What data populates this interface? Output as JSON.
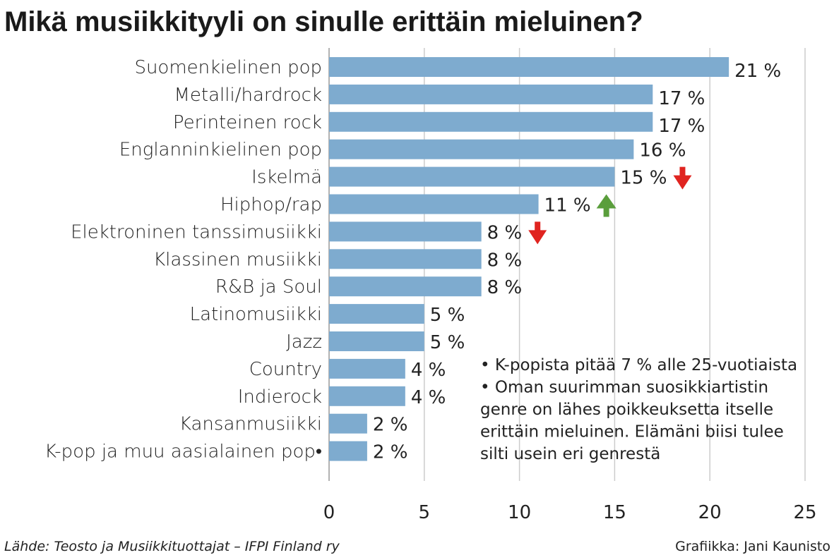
{
  "chart_data": {
    "type": "bar",
    "orientation": "horizontal",
    "title": "Mikä musiikkityyli on sinulle erittäin mieluinen?",
    "categories": [
      "Suomenkielinen pop",
      "Metalli/hardrock",
      "Perinteinen rock",
      "Englanninkielinen pop",
      "Iskelmä",
      "Hiphop/rap",
      "Elektroninen tanssimusiikki",
      "Klassinen musiikki",
      "R&B ja Soul",
      "Latinomusiikki",
      "Jazz",
      "Country",
      "Indierock",
      "Kansanmusiikki",
      "K-pop ja muu aasialainen pop•"
    ],
    "values": [
      21,
      17,
      17,
      16,
      15,
      11,
      8,
      8,
      8,
      5,
      5,
      4,
      4,
      2,
      2
    ],
    "value_labels": [
      "21 %",
      "17 %",
      "17 %",
      "16 %",
      "15 %",
      "11 %",
      "8 %",
      "8 %",
      "8 %",
      "5 %",
      "5 %",
      "4 %",
      "4 %",
      "2 %",
      "2 %"
    ],
    "trends": [
      null,
      null,
      null,
      null,
      "down",
      "up",
      "down",
      null,
      null,
      null,
      null,
      null,
      null,
      null,
      null
    ],
    "xlim": [
      0,
      25
    ],
    "xticks": [
      0,
      5,
      10,
      15,
      20,
      25
    ],
    "grid": true,
    "xlabel": "",
    "ylabel": "",
    "colors": {
      "bar": "#7eabcf",
      "up": "#5a9e3c",
      "down": "#e02420",
      "grid": "#cccccc"
    }
  },
  "notes": [
    "• K-popista pitää 7 % alle 25-vuotiaista",
    "• Oman suurimman suosikkiartistin",
    "genre on lähes poikkeuksetta itselle",
    "erittäin mieluinen. Elämäni biisi tulee",
    "silti usein eri genrestä"
  ],
  "footer": {
    "source": "Lähde: Teosto ja Musiikkituottajat – IFPI Finland ry",
    "credit": "Grafiikka: Jani Kaunisto"
  }
}
